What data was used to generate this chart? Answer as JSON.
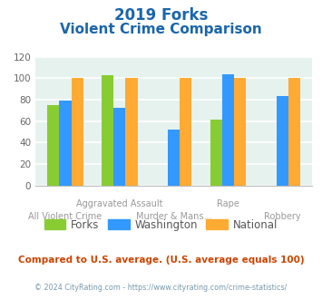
{
  "title_line1": "2019 Forks",
  "title_line2": "Violent Crime Comparison",
  "forks": [
    75,
    103,
    null,
    61,
    null
  ],
  "washington": [
    79,
    72,
    52,
    104,
    83
  ],
  "national": [
    100,
    100,
    100,
    100,
    100
  ],
  "colors": {
    "forks": "#88cc33",
    "washington": "#3399ff",
    "national": "#ffaa33"
  },
  "ylim": [
    0,
    120
  ],
  "yticks": [
    0,
    20,
    40,
    60,
    80,
    100,
    120
  ],
  "background_color": "#e6f2ee",
  "legend_labels": [
    "Forks",
    "Washington",
    "National"
  ],
  "footnote1": "Compared to U.S. average. (U.S. average equals 100)",
  "footnote2": "© 2024 CityRating.com - https://www.cityrating.com/crime-statistics/",
  "title_color": "#1a66aa",
  "footnote1_color": "#cc4400",
  "footnote2_color": "#7799aa",
  "top_xlabels": [
    null,
    "Aggravated Assault",
    null,
    "Rape",
    null
  ],
  "bot_xlabels": [
    "All Violent Crime",
    null,
    "Murder & Mans...",
    null,
    "Robbery"
  ]
}
